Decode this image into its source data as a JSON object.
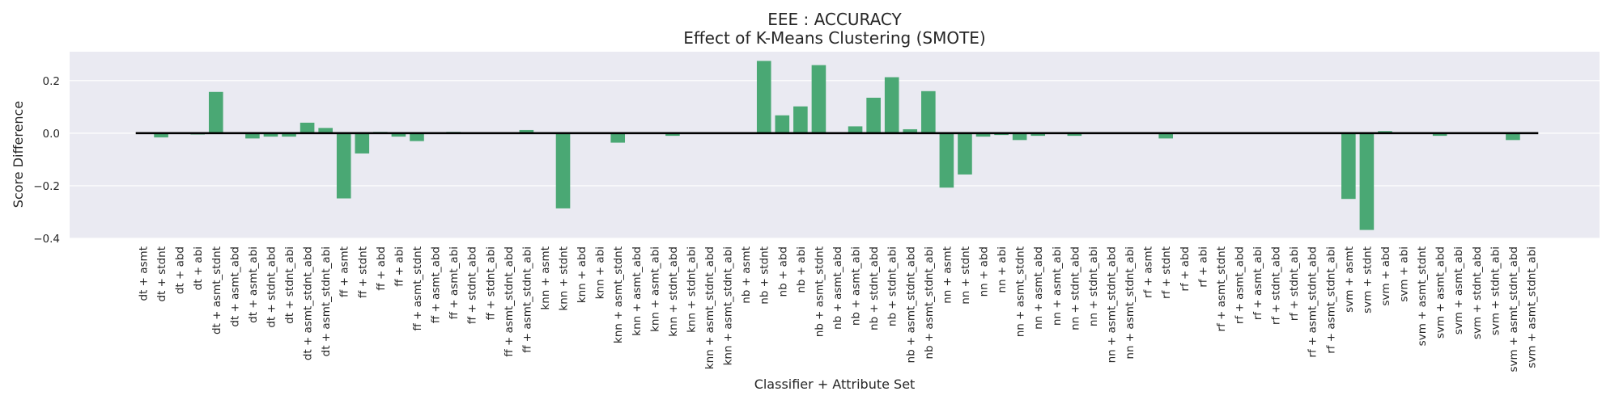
{
  "chart_data": {
    "type": "bar",
    "title": "EEE : ACCURACY",
    "subtitle": "Effect of K-Means Clustering (SMOTE)",
    "xlabel": "Classifier + Attribute Set",
    "ylabel": "Score Difference",
    "ylim": [
      -0.4,
      0.31
    ],
    "yticks": [
      -0.4,
      -0.2,
      0.0,
      0.2
    ],
    "ytick_labels": [
      "−0.4",
      "−0.2",
      "0.0",
      "0.2"
    ],
    "grid": true,
    "zero_line": true,
    "bar_color": "#4aa874",
    "background_color": "#eaeaf2",
    "zero_line_color": "#000000",
    "categories": [
      "dt + asmt",
      "dt + stdnt",
      "dt + abd",
      "dt + abi",
      "dt + asmt_stdnt",
      "dt + asmt_abd",
      "dt + asmt_abi",
      "dt + stdnt_abd",
      "dt + stdnt_abi",
      "dt + asmt_stdnt_abd",
      "dt + asmt_stdnt_abi",
      "ff + asmt",
      "ff + stdnt",
      "ff + abd",
      "ff + abi",
      "ff + asmt_stdnt",
      "ff + asmt_abd",
      "ff + asmt_abi",
      "ff + stdnt_abd",
      "ff + stdnt_abi",
      "ff + asmt_stdnt_abd",
      "ff + asmt_stdnt_abi",
      "knn + asmt",
      "knn + stdnt",
      "knn + abd",
      "knn + abi",
      "knn + asmt_stdnt",
      "knn + asmt_abd",
      "knn + asmt_abi",
      "knn + stdnt_abd",
      "knn + stdnt_abi",
      "knn + asmt_stdnt_abd",
      "knn + asmt_stdnt_abi",
      "nb + asmt",
      "nb + stdnt",
      "nb + abd",
      "nb + abi",
      "nb + asmt_stdnt",
      "nb + asmt_abd",
      "nb + asmt_abi",
      "nb + stdnt_abd",
      "nb + stdnt_abi",
      "nb + asmt_stdnt_abd",
      "nb + asmt_stdnt_abi",
      "nn + asmt",
      "nn + stdnt",
      "nn + abd",
      "nn + abi",
      "nn + asmt_stdnt",
      "nn + asmt_abd",
      "nn + asmt_abi",
      "nn + stdnt_abd",
      "nn + stdnt_abi",
      "nn + asmt_stdnt_abd",
      "nn + asmt_stdnt_abi",
      "rf + asmt",
      "rf + stdnt",
      "rf + abd",
      "rf + abi",
      "rf + asmt_stdnt",
      "rf + asmt_abd",
      "rf + asmt_abi",
      "rf + stdnt_abd",
      "rf + stdnt_abi",
      "rf + asmt_stdnt_abd",
      "rf + asmt_stdnt_abi",
      "svm + asmt",
      "svm + stdnt",
      "svm + abd",
      "svm + abi",
      "svm + asmt_stdnt",
      "svm + asmt_abd",
      "svm + asmt_abi",
      "svm + stdnt_abd",
      "svm + stdnt_abi",
      "svm + asmt_stdnt_abd",
      "svm + asmt_stdnt_abi"
    ],
    "values": [
      0.0,
      -0.016,
      0.0,
      -0.005,
      0.157,
      0.0,
      -0.02,
      -0.013,
      -0.013,
      0.04,
      0.02,
      -0.248,
      -0.077,
      0.005,
      -0.013,
      -0.03,
      0.003,
      0.005,
      0.0,
      0.0,
      0.0,
      0.012,
      0.0,
      -0.286,
      0.0,
      0.0,
      -0.036,
      0.0,
      0.0,
      -0.01,
      -0.003,
      0.0,
      0.0,
      0.0,
      0.275,
      0.068,
      0.102,
      0.259,
      0.0,
      0.026,
      0.135,
      0.213,
      0.015,
      0.16,
      -0.207,
      -0.157,
      -0.013,
      -0.007,
      -0.026,
      -0.01,
      0.0,
      -0.01,
      0.0,
      0.0,
      0.0,
      0.0,
      -0.02,
      0.0,
      0.0,
      0.0,
      0.0,
      0.0,
      0.0,
      0.0,
      0.0,
      0.0,
      -0.25,
      -0.368,
      0.008,
      0.0,
      0.0,
      -0.01,
      0.0,
      0.0,
      0.0,
      -0.026,
      0.0
    ]
  }
}
